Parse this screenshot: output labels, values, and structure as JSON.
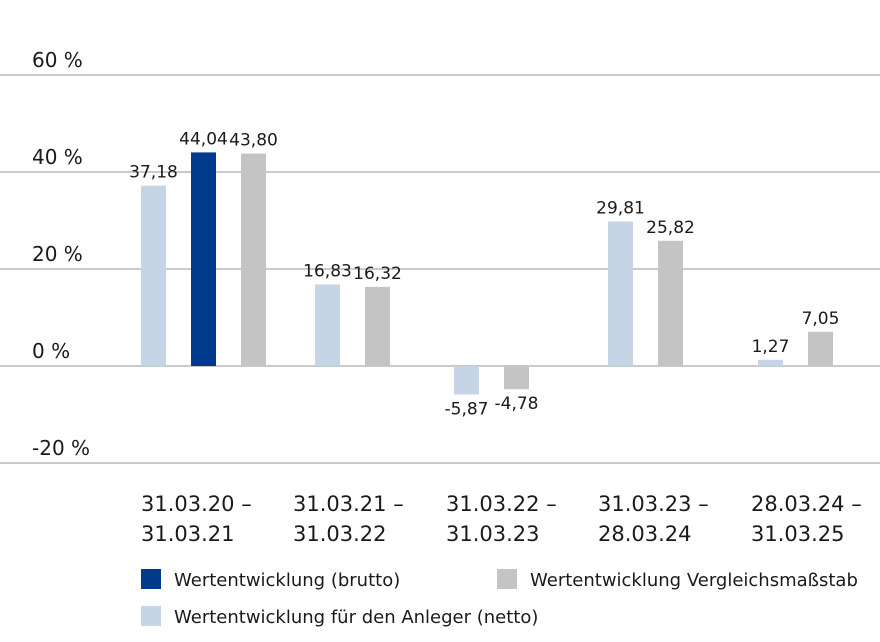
{
  "chart_data": {
    "type": "bar",
    "categories": [
      [
        "31.03.20 –",
        "31.03.21"
      ],
      [
        "31.03.21 –",
        "31.03.22"
      ],
      [
        "31.03.22 –",
        "31.03.23"
      ],
      [
        "31.03.23 –",
        "28.03.24"
      ],
      [
        "28.03.24 –",
        "31.03.25"
      ]
    ],
    "series": [
      {
        "name": "Wertentwicklung für den Anleger (netto)",
        "color": "#c6d5e6",
        "values": [
          37.18,
          16.83,
          -5.87,
          29.81,
          1.27
        ],
        "labels": [
          "37,18",
          "16,83",
          "-5,87",
          "29,81",
          "1,27"
        ]
      },
      {
        "name": "Wertentwicklung (brutto)",
        "color": "#003a8c",
        "values": [
          44.04,
          null,
          null,
          null,
          null
        ],
        "labels": [
          "44,04",
          "",
          "",
          "",
          ""
        ]
      },
      {
        "name": "Wertentwicklung Vergleichsmaßstab",
        "color": "#c4c4c4",
        "values": [
          43.8,
          16.32,
          -4.78,
          25.82,
          7.05
        ],
        "labels": [
          "43,80",
          "16,32",
          "-4,78",
          "25,82",
          "7,05"
        ]
      }
    ],
    "y_ticks": [
      60,
      40,
      20,
      0,
      -20
    ],
    "y_tick_labels": [
      "60 %",
      "40 %",
      "20 %",
      "0 %",
      "-20 %"
    ],
    "ylim": [
      -20,
      60
    ],
    "grid": true,
    "legend": {
      "placement": "bottom",
      "entries": [
        {
          "label": "Wertentwicklung (brutto)",
          "color": "#003a8c"
        },
        {
          "label": "Wertentwicklung Vergleichsmaßstab",
          "color": "#c4c4c4"
        },
        {
          "label": "Wertentwicklung für den Anleger (netto)",
          "color": "#c6d5e6"
        }
      ]
    }
  }
}
